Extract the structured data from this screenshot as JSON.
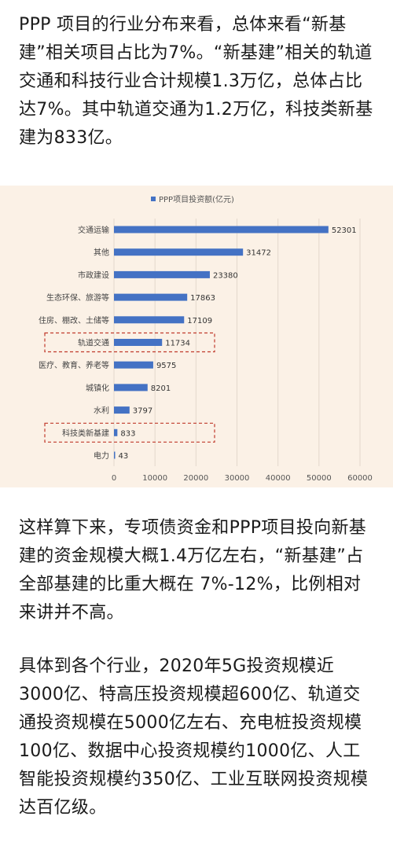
{
  "article": {
    "paragraphs": [
      "PPP 项目的行业分布来看，总体来看“新基建”相关项目占比为7%。“新基建”相关的轨道交通和科技行业合计规模1.3万亿，总体占比达7%。其中轨道交通为1.2万亿，科技类新基建为833亿。",
      "这样算下来，专项债资金和PPP项目投向新基建的资金规模大概1.4万亿左右，“新基建”占全部基建的比重大概在 7%-12%，比例相对来讲并不高。",
      "具体到各个行业，2020年5G投资规模近3000亿、特高压投资规模超600亿、轨道交通投资规模在5000亿左右、充电桩投资规模100亿、数据中心投资规模约1000亿、人工智能投资规模约350亿、工业互联网投资规模达百亿级。"
    ]
  },
  "chart_data": {
    "type": "bar",
    "orientation": "horizontal",
    "legend": "PPP项目投资额(亿元)",
    "legend_position": "top",
    "categories": [
      "交通运输",
      "其他",
      "市政建设",
      "生态环保、旅游等",
      "住房、棚改、土储等",
      "轨道交通",
      "医疗、教育、养老等",
      "城镇化",
      "水利",
      "科技类新基建",
      "电力"
    ],
    "series": [
      {
        "name": "PPP项目投资额(亿元)",
        "values": [
          52301,
          31472,
          23380,
          17863,
          17109,
          11734,
          9575,
          8201,
          3797,
          833,
          43
        ]
      }
    ],
    "highlighted": [
      "轨道交通",
      "科技类新基建"
    ],
    "xlim": [
      0,
      60000
    ],
    "xticks": [
      0,
      10000,
      20000,
      30000,
      40000,
      50000,
      60000
    ],
    "grid": true,
    "colors": {
      "bar": "#4472c4",
      "background": "#fbf1e6",
      "highlight_box": "#c0392b",
      "grid": "#e3d8cc"
    }
  }
}
